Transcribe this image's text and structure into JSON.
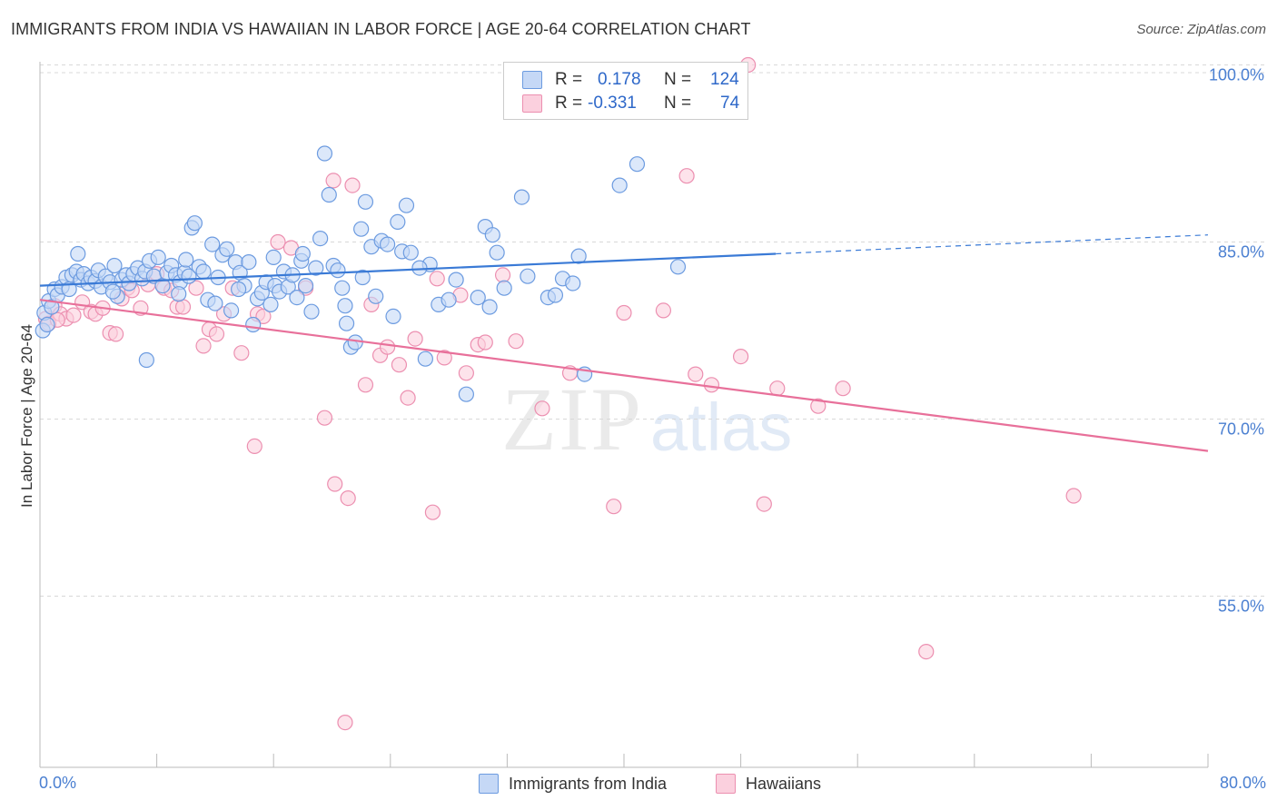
{
  "title": "IMMIGRANTS FROM INDIA VS HAWAIIAN IN LABOR FORCE | AGE 20-64 CORRELATION CHART",
  "source": "Source: ZipAtlas.com",
  "watermark": {
    "zip": "ZIP",
    "atlas": "atlas"
  },
  "legend": {
    "r_label": "R =",
    "n_label": "N =",
    "series1": {
      "r": "0.178",
      "n": "124"
    },
    "series2": {
      "r": "-0.331",
      "n": "74"
    }
  },
  "colors": {
    "blue_fill": "#c5d8f6",
    "blue_stroke": "#6c9be0",
    "blue_line": "#3a7ad6",
    "pink_fill": "#fbd0de",
    "pink_stroke": "#ec8fb0",
    "pink_line": "#e8709a",
    "axis_text": "#4a7fd1",
    "grid": "#d8d8d8"
  },
  "chart_data": {
    "type": "scatter",
    "title": "IMMIGRANTS FROM INDIA VS HAWAIIAN IN LABOR FORCE | AGE 20-64 CORRELATION CHART",
    "xlabel": "",
    "ylabel": "In Labor Force | Age 20-64",
    "xlim": [
      0,
      80
    ],
    "ylim": [
      40.5,
      101.5
    ],
    "x_tick_labels": [
      "0.0%",
      "80.0%"
    ],
    "y_ticks": [
      55,
      70,
      85,
      100
    ],
    "y_tick_labels": [
      "55.0%",
      "70.0%",
      "85.0%",
      "100.0%"
    ],
    "series": [
      {
        "name": "Immigrants from India",
        "r": 0.178,
        "n": 124,
        "trend": {
          "x0": 0,
          "y0": 81.3,
          "x1": 50.4,
          "y1": 84.0,
          "dash_x1": 80.0,
          "dash_y1": 85.6
        },
        "points": [
          [
            0.2,
            77.5
          ],
          [
            0.3,
            79
          ],
          [
            0.5,
            78
          ],
          [
            0.6,
            80
          ],
          [
            0.8,
            79.5
          ],
          [
            1.0,
            81
          ],
          [
            1.2,
            80.5
          ],
          [
            1.5,
            81.2
          ],
          [
            1.8,
            82
          ],
          [
            2.0,
            81
          ],
          [
            2.2,
            82.2
          ],
          [
            2.5,
            82.5
          ],
          [
            2.8,
            81.8
          ],
          [
            3.0,
            82.3
          ],
          [
            3.3,
            81.5
          ],
          [
            3.5,
            82
          ],
          [
            3.8,
            81.7
          ],
          [
            4.0,
            82.6
          ],
          [
            4.2,
            81.2
          ],
          [
            4.5,
            82.1
          ],
          [
            4.8,
            81.6
          ],
          [
            5.1,
            83
          ],
          [
            5.3,
            80.4
          ],
          [
            5.6,
            81.8
          ],
          [
            5.9,
            82.2
          ],
          [
            6.1,
            81.5
          ],
          [
            6.4,
            82.3
          ],
          [
            6.7,
            82.8
          ],
          [
            7.0,
            81.9
          ],
          [
            7.2,
            82.5
          ],
          [
            7.5,
            83.4
          ],
          [
            7.8,
            82.1
          ],
          [
            8.1,
            83.7
          ],
          [
            8.4,
            81.3
          ],
          [
            8.7,
            82.4
          ],
          [
            9.0,
            83
          ],
          [
            9.3,
            82.2
          ],
          [
            9.6,
            81.6
          ],
          [
            9.9,
            82.4
          ],
          [
            10.2,
            82.1
          ],
          [
            10.4,
            86.2
          ],
          [
            10.6,
            86.6
          ],
          [
            10.9,
            82.9
          ],
          [
            11.2,
            82.5
          ],
          [
            11.5,
            80.1
          ],
          [
            11.8,
            84.8
          ],
          [
            12.2,
            82
          ],
          [
            12.5,
            83.9
          ],
          [
            12.8,
            84.4
          ],
          [
            13.1,
            79.2
          ],
          [
            13.4,
            83.3
          ],
          [
            13.7,
            82.4
          ],
          [
            14.0,
            81.3
          ],
          [
            14.3,
            83.3
          ],
          [
            14.6,
            78
          ],
          [
            14.9,
            80.2
          ],
          [
            15.2,
            80.7
          ],
          [
            15.5,
            81.6
          ],
          [
            15.8,
            79.7
          ],
          [
            16.1,
            81.3
          ],
          [
            16.4,
            80.8
          ],
          [
            16.7,
            82.5
          ],
          [
            17.0,
            81.2
          ],
          [
            17.3,
            82.2
          ],
          [
            17.6,
            80.3
          ],
          [
            17.9,
            83.4
          ],
          [
            18.2,
            81.3
          ],
          [
            18.6,
            79.1
          ],
          [
            18.9,
            82.8
          ],
          [
            19.2,
            85.3
          ],
          [
            19.5,
            92.5
          ],
          [
            19.8,
            89
          ],
          [
            20.1,
            83
          ],
          [
            20.4,
            82.6
          ],
          [
            20.7,
            81.1
          ],
          [
            21.0,
            78.1
          ],
          [
            21.3,
            76.1
          ],
          [
            21.6,
            76.5
          ],
          [
            22.0,
            86.1
          ],
          [
            22.3,
            88.4
          ],
          [
            22.7,
            84.6
          ],
          [
            23.0,
            80.4
          ],
          [
            23.4,
            85.1
          ],
          [
            23.8,
            84.8
          ],
          [
            24.2,
            78.7
          ],
          [
            24.5,
            86.7
          ],
          [
            24.8,
            84.2
          ],
          [
            25.1,
            88.1
          ],
          [
            25.4,
            84.1
          ],
          [
            26.4,
            75.1
          ],
          [
            26.7,
            83.1
          ],
          [
            27.3,
            79.7
          ],
          [
            28.0,
            80.1
          ],
          [
            28.5,
            81.8
          ],
          [
            29.2,
            72.1
          ],
          [
            30.0,
            80.3
          ],
          [
            30.5,
            86.3
          ],
          [
            31.0,
            85.6
          ],
          [
            31.3,
            84.1
          ],
          [
            31.8,
            81.1
          ],
          [
            33.0,
            88.8
          ],
          [
            33.4,
            82.1
          ],
          [
            34.8,
            80.3
          ],
          [
            35.3,
            80.5
          ],
          [
            35.8,
            81.9
          ],
          [
            36.5,
            81.5
          ],
          [
            36.9,
            83.8
          ],
          [
            37.3,
            73.8
          ],
          [
            39.7,
            89.8
          ],
          [
            40.9,
            91.6
          ],
          [
            43.7,
            82.9
          ],
          [
            7.3,
            75.0
          ],
          [
            2.6,
            84.0
          ],
          [
            13.6,
            81.0
          ],
          [
            22.1,
            82.0
          ],
          [
            9.5,
            80.6
          ],
          [
            12.0,
            79.8
          ],
          [
            18.0,
            84.0
          ],
          [
            26.0,
            82.8
          ],
          [
            30.8,
            79.5
          ],
          [
            5.0,
            80.8
          ],
          [
            10.0,
            83.5
          ],
          [
            16.0,
            83.7
          ],
          [
            20.9,
            79.6
          ]
        ]
      },
      {
        "name": "Hawaiians",
        "r": -0.331,
        "n": 74,
        "trend": {
          "x0": 0,
          "y0": 80.1,
          "x1": 80,
          "y1": 67.3
        },
        "points": [
          [
            0.4,
            78.5
          ],
          [
            0.6,
            78.1
          ],
          [
            1.0,
            79.6
          ],
          [
            1.4,
            78.9
          ],
          [
            1.8,
            78.5
          ],
          [
            2.3,
            78.8
          ],
          [
            2.9,
            79.9
          ],
          [
            3.5,
            79.1
          ],
          [
            3.8,
            78.9
          ],
          [
            4.3,
            79.4
          ],
          [
            4.8,
            77.3
          ],
          [
            5.2,
            77.2
          ],
          [
            5.6,
            80.2
          ],
          [
            6.0,
            81.1
          ],
          [
            6.3,
            80.9
          ],
          [
            6.9,
            79.4
          ],
          [
            7.4,
            81.4
          ],
          [
            8.0,
            82.3
          ],
          [
            8.5,
            81.1
          ],
          [
            9.0,
            80.9
          ],
          [
            9.4,
            79.5
          ],
          [
            9.8,
            79.5
          ],
          [
            10.7,
            81.1
          ],
          [
            11.2,
            76.2
          ],
          [
            11.6,
            77.6
          ],
          [
            12.1,
            77.2
          ],
          [
            12.6,
            78.9
          ],
          [
            13.2,
            81.1
          ],
          [
            13.8,
            75.6
          ],
          [
            14.7,
            67.7
          ],
          [
            14.9,
            78.9
          ],
          [
            15.3,
            78.7
          ],
          [
            16.3,
            85.0
          ],
          [
            17.2,
            84.5
          ],
          [
            18.2,
            81.1
          ],
          [
            19.5,
            70.1
          ],
          [
            20.1,
            90.2
          ],
          [
            20.2,
            64.5
          ],
          [
            20.9,
            44.3
          ],
          [
            21.1,
            63.3
          ],
          [
            21.4,
            89.8
          ],
          [
            22.3,
            72.9
          ],
          [
            22.7,
            79.7
          ],
          [
            23.3,
            75.4
          ],
          [
            23.8,
            76.1
          ],
          [
            24.6,
            74.6
          ],
          [
            25.2,
            71.8
          ],
          [
            25.7,
            76.8
          ],
          [
            26.9,
            62.1
          ],
          [
            27.2,
            81.9
          ],
          [
            27.7,
            75.2
          ],
          [
            28.8,
            80.5
          ],
          [
            29.2,
            73.9
          ],
          [
            30.0,
            76.3
          ],
          [
            30.5,
            76.5
          ],
          [
            31.7,
            82.2
          ],
          [
            32.6,
            76.6
          ],
          [
            34.4,
            70.9
          ],
          [
            36.3,
            73.9
          ],
          [
            39.3,
            62.6
          ],
          [
            40.0,
            79.0
          ],
          [
            42.7,
            79.2
          ],
          [
            44.9,
            73.8
          ],
          [
            46.0,
            72.9
          ],
          [
            48.0,
            75.3
          ],
          [
            48.5,
            100.0
          ],
          [
            49.6,
            62.8
          ],
          [
            50.5,
            72.6
          ],
          [
            53.3,
            71.1
          ],
          [
            55.0,
            72.6
          ],
          [
            60.7,
            50.3
          ],
          [
            70.8,
            63.5
          ],
          [
            44.3,
            90.6
          ],
          [
            1.2,
            78.4
          ]
        ]
      }
    ]
  },
  "bottom_legend": {
    "series1": "Immigrants from India",
    "series2": "Hawaiians"
  }
}
